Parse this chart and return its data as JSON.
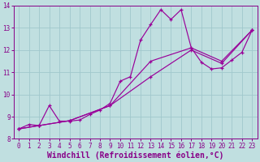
{
  "xlabel": "Windchill (Refroidissement éolien,°C)",
  "xlim": [
    -0.5,
    23.5
  ],
  "ylim": [
    8,
    14
  ],
  "xticks": [
    0,
    1,
    2,
    3,
    4,
    5,
    6,
    7,
    8,
    9,
    10,
    11,
    12,
    13,
    14,
    15,
    16,
    17,
    18,
    19,
    20,
    21,
    22,
    23
  ],
  "yticks": [
    8,
    9,
    10,
    11,
    12,
    13,
    14
  ],
  "background_color": "#c0dfe0",
  "line_color": "#990099",
  "grid_color": "#a0c8cc",
  "line1_x": [
    0,
    1,
    2,
    3,
    4,
    5,
    6,
    7,
    8,
    9,
    10,
    11,
    12,
    13,
    14,
    15,
    16,
    17,
    18,
    19,
    20,
    21,
    22,
    23
  ],
  "line1_y": [
    8.45,
    8.65,
    8.6,
    9.5,
    8.8,
    8.8,
    8.85,
    9.1,
    9.3,
    9.6,
    10.6,
    10.8,
    12.45,
    13.15,
    13.82,
    13.38,
    13.82,
    12.1,
    11.45,
    11.15,
    11.2,
    11.55,
    11.9,
    12.9
  ],
  "line2_x": [
    0,
    2,
    5,
    9,
    13,
    17,
    20,
    23
  ],
  "line2_y": [
    8.45,
    8.6,
    8.82,
    9.5,
    11.5,
    12.1,
    11.5,
    12.9
  ],
  "line3_x": [
    0,
    2,
    5,
    9,
    13,
    17,
    20,
    23
  ],
  "line3_y": [
    8.45,
    8.6,
    8.82,
    9.5,
    10.8,
    12.0,
    11.4,
    12.9
  ],
  "font_color": "#880088",
  "tick_fontsize": 5.5,
  "xlabel_fontsize": 7.0
}
